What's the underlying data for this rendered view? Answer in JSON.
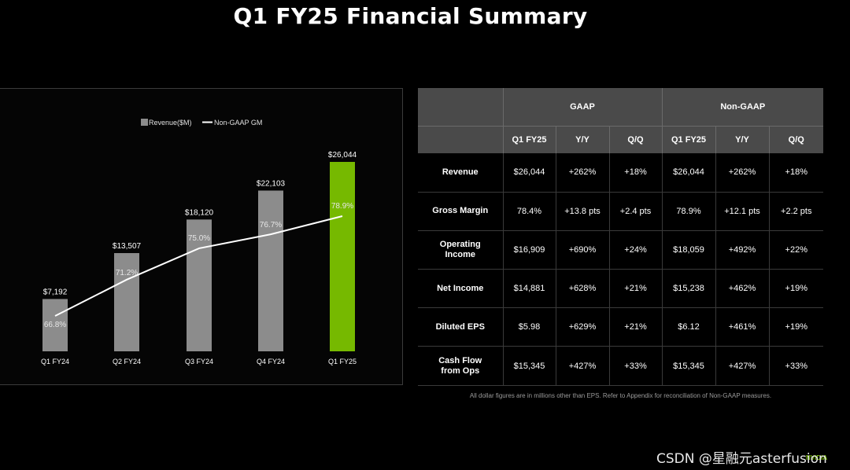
{
  "page": {
    "title": "Q1 FY25 Financial Summary"
  },
  "colors": {
    "bar": "#8c8c8c",
    "bar_highlight": "#76b900",
    "line": "#ffffff",
    "background": "#000000"
  },
  "chart_data": {
    "type": "bar",
    "title": "",
    "xlabel": "",
    "ylabel": "",
    "categories": [
      "Q1 FY24",
      "Q2 FY24",
      "Q3 FY24",
      "Q4 FY24",
      "Q1 FY25"
    ],
    "series": [
      {
        "name": "Revenue($M)",
        "type": "bar",
        "values": [
          7192,
          13507,
          18120,
          22103,
          26044
        ],
        "labels": [
          "$7,192",
          "$13,507",
          "$18,120",
          "$22,103",
          "$26,044"
        ],
        "highlight_index": 4
      },
      {
        "name": "Non-GAAP GM",
        "type": "line",
        "values": [
          66.8,
          71.2,
          75.0,
          76.7,
          78.9
        ],
        "labels": [
          "66.8%",
          "71.2%",
          "75.0%",
          "76.7%",
          "78.9%"
        ]
      }
    ],
    "ylim": [
      0,
      26044
    ],
    "legend": "top-center",
    "grid": false
  },
  "table": {
    "groups": [
      "GAAP",
      "Non-GAAP"
    ],
    "columns": [
      "Q1 FY25",
      "Y/Y",
      "Q/Q",
      "Q1 FY25",
      "Y/Y",
      "Q/Q"
    ],
    "rows": [
      {
        "label": "Revenue",
        "cells": [
          "$26,044",
          "+262%",
          "+18%",
          "$26,044",
          "+262%",
          "+18%"
        ]
      },
      {
        "label": "Gross Margin",
        "cells": [
          "78.4%",
          "+13.8 pts",
          "+2.4 pts",
          "78.9%",
          "+12.1 pts",
          "+2.2 pts"
        ]
      },
      {
        "label": "Operating Income",
        "cells": [
          "$16,909",
          "+690%",
          "+24%",
          "$18,059",
          "+492%",
          "+22%"
        ]
      },
      {
        "label": "Net Income",
        "cells": [
          "$14,881",
          "+628%",
          "+21%",
          "$15,238",
          "+462%",
          "+19%"
        ]
      },
      {
        "label": "Diluted EPS",
        "cells": [
          "$5.98",
          "+629%",
          "+21%",
          "$6.12",
          "+461%",
          "+19%"
        ]
      },
      {
        "label": "Cash Flow from Ops",
        "cells": [
          "$15,345",
          "+427%",
          "+33%",
          "$15,345",
          "+427%",
          "+33%"
        ]
      }
    ]
  },
  "footnote": "All dollar figures are in millions other than EPS. Refer to Appendix for reconciliation of Non-GAAP measures.",
  "logo": "NVIDIA",
  "watermark": "CSDN @星融元asterfusion"
}
